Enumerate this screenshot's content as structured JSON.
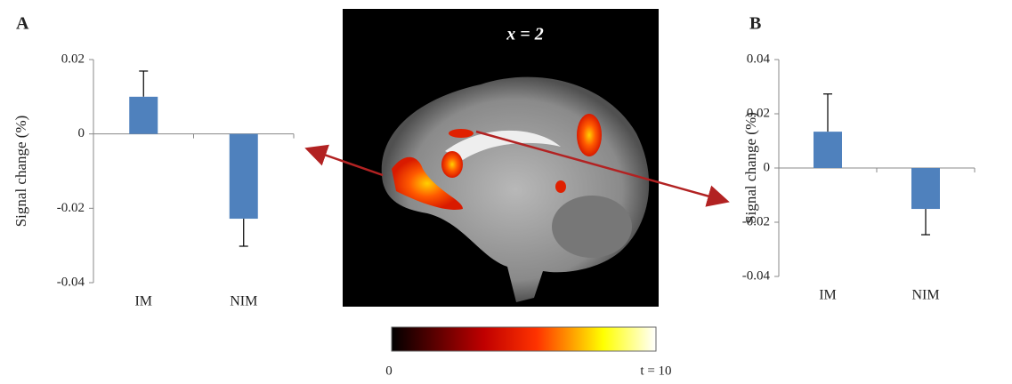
{
  "chart_data": [
    {
      "type": "bar",
      "panel": "A",
      "ylabel": "Signal change (%)",
      "categories": [
        "IM",
        "NIM"
      ],
      "values": [
        0.01,
        -0.0228
      ],
      "errors": [
        0.0069,
        0.0074
      ],
      "color": "#4f81bd",
      "ylim": [
        -0.04,
        0.02
      ],
      "yticks": [
        0.02,
        0,
        -0.02,
        -0.04
      ]
    },
    {
      "type": "bar",
      "panel": "B",
      "ylabel": "Signal change (%)",
      "categories": [
        "IM",
        "NIM"
      ],
      "values": [
        0.0134,
        -0.0151
      ],
      "errors": [
        0.0139,
        0.0095
      ],
      "color": "#4f81bd",
      "ylim": [
        -0.04,
        0.04
      ],
      "yticks": [
        0.04,
        0.02,
        0,
        -0.02,
        -0.04
      ]
    }
  ],
  "figure": {
    "slice_label": "x = 2",
    "colorbar_min": "0",
    "colorbar_max": "t = 10"
  }
}
